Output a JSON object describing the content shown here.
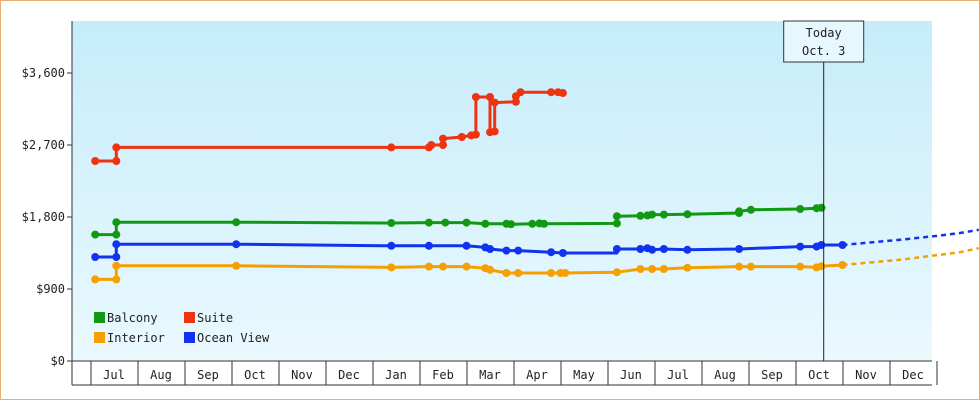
{
  "chart_data": {
    "type": "line",
    "y_ticks": [
      "$0",
      "$900",
      "$1,800",
      "$2,700",
      "$3,600"
    ],
    "ylim": [
      0,
      4250
    ],
    "month_labels": [
      "Jul",
      "Aug",
      "Sep",
      "Oct",
      "Nov",
      "Dec",
      "Jan",
      "Feb",
      "Mar",
      "Apr",
      "May",
      "Jun",
      "Jul",
      "Aug",
      "Sep",
      "Oct",
      "Nov",
      "Dec"
    ],
    "today": {
      "line1": "Today",
      "line2": "Oct. 3",
      "x": 15.1
    },
    "legend": [
      {
        "name": "Balcony",
        "color": "#119911"
      },
      {
        "name": "Suite",
        "color": "#ee3311"
      },
      {
        "name": "Interior",
        "color": "#f5a000"
      },
      {
        "name": "Ocean View",
        "color": "#1133ee"
      }
    ],
    "series": [
      {
        "name": "Balcony",
        "color": "#119911",
        "points": [
          [
            -0.4,
            1580
          ],
          [
            0.05,
            1580
          ],
          [
            0.05,
            1735
          ],
          [
            2.6,
            1735
          ],
          [
            5.9,
            1725
          ],
          [
            6.7,
            1730
          ],
          [
            7.5,
            1730
          ],
          [
            7.9,
            1715
          ],
          [
            8.35,
            1715
          ],
          [
            8.5,
            1710
          ],
          [
            8.9,
            1715
          ],
          [
            9.05,
            1720
          ],
          [
            9.15,
            1715
          ],
          [
            10.7,
            1720
          ],
          [
            10.7,
            1810
          ],
          [
            11.2,
            1815
          ],
          [
            11.35,
            1820
          ],
          [
            11.45,
            1830
          ],
          [
            11.7,
            1830
          ],
          [
            12.2,
            1835
          ],
          [
            13.3,
            1850
          ],
          [
            13.3,
            1870
          ],
          [
            13.55,
            1890
          ],
          [
            14.6,
            1900
          ],
          [
            14.95,
            1910
          ],
          [
            15.05,
            1915
          ]
        ],
        "markers": [
          [
            -0.4,
            1580
          ],
          [
            0.05,
            1580
          ],
          [
            0.05,
            1735
          ],
          [
            2.6,
            1735
          ],
          [
            5.9,
            1725
          ],
          [
            6.7,
            1730
          ],
          [
            7.05,
            1730
          ],
          [
            7.5,
            1730
          ],
          [
            7.9,
            1715
          ],
          [
            8.35,
            1715
          ],
          [
            8.45,
            1710
          ],
          [
            8.9,
            1715
          ],
          [
            9.05,
            1720
          ],
          [
            9.15,
            1715
          ],
          [
            10.7,
            1720
          ],
          [
            10.7,
            1810
          ],
          [
            11.2,
            1815
          ],
          [
            11.35,
            1820
          ],
          [
            11.45,
            1830
          ],
          [
            11.7,
            1830
          ],
          [
            12.2,
            1835
          ],
          [
            13.3,
            1850
          ],
          [
            13.3,
            1870
          ],
          [
            13.55,
            1890
          ],
          [
            14.6,
            1900
          ],
          [
            14.95,
            1910
          ],
          [
            15.05,
            1915
          ]
        ],
        "projected": []
      },
      {
        "name": "Suite",
        "color": "#ee3311",
        "points": [
          [
            -0.4,
            2500
          ],
          [
            0.05,
            2500
          ],
          [
            0.05,
            2670
          ],
          [
            5.9,
            2670
          ],
          [
            6.7,
            2670
          ],
          [
            6.75,
            2700
          ],
          [
            7.0,
            2700
          ],
          [
            7.0,
            2780
          ],
          [
            7.4,
            2800
          ],
          [
            7.6,
            2820
          ],
          [
            7.7,
            2830
          ],
          [
            7.7,
            3300
          ],
          [
            8.0,
            3300
          ],
          [
            8.0,
            2860
          ],
          [
            8.1,
            2870
          ],
          [
            8.1,
            3230
          ],
          [
            8.55,
            3240
          ],
          [
            8.55,
            3310
          ],
          [
            8.65,
            3360
          ],
          [
            9.3,
            3360
          ],
          [
            9.45,
            3360
          ],
          [
            9.55,
            3350
          ]
        ],
        "markers": [
          [
            -0.4,
            2500
          ],
          [
            0.05,
            2500
          ],
          [
            0.05,
            2670
          ],
          [
            5.9,
            2670
          ],
          [
            6.7,
            2670
          ],
          [
            6.75,
            2700
          ],
          [
            7.0,
            2700
          ],
          [
            7.0,
            2780
          ],
          [
            7.4,
            2800
          ],
          [
            7.6,
            2820
          ],
          [
            7.7,
            2830
          ],
          [
            7.7,
            3300
          ],
          [
            8.0,
            3300
          ],
          [
            8.0,
            2860
          ],
          [
            8.1,
            2870
          ],
          [
            8.1,
            3230
          ],
          [
            8.55,
            3240
          ],
          [
            8.55,
            3310
          ],
          [
            8.65,
            3360
          ],
          [
            9.3,
            3360
          ],
          [
            9.45,
            3360
          ],
          [
            9.55,
            3350
          ]
        ],
        "projected": []
      },
      {
        "name": "Interior",
        "color": "#f5a000",
        "points": [
          [
            -0.4,
            1020
          ],
          [
            0.05,
            1020
          ],
          [
            0.05,
            1190
          ],
          [
            2.6,
            1190
          ],
          [
            5.9,
            1170
          ],
          [
            6.7,
            1180
          ],
          [
            7.0,
            1180
          ],
          [
            7.5,
            1180
          ],
          [
            7.9,
            1160
          ],
          [
            8.0,
            1140
          ],
          [
            8.35,
            1100
          ],
          [
            8.6,
            1100
          ],
          [
            9.3,
            1100
          ],
          [
            9.55,
            1100
          ],
          [
            10.7,
            1110
          ],
          [
            11.2,
            1150
          ],
          [
            11.45,
            1150
          ],
          [
            11.7,
            1150
          ],
          [
            12.2,
            1165
          ],
          [
            13.3,
            1180
          ],
          [
            13.55,
            1180
          ],
          [
            14.6,
            1180
          ],
          [
            14.95,
            1170
          ],
          [
            15.05,
            1185
          ],
          [
            15.5,
            1200
          ]
        ],
        "markers": [
          [
            -0.4,
            1020
          ],
          [
            0.05,
            1020
          ],
          [
            0.05,
            1190
          ],
          [
            2.6,
            1190
          ],
          [
            5.9,
            1170
          ],
          [
            6.7,
            1180
          ],
          [
            7.0,
            1180
          ],
          [
            7.5,
            1180
          ],
          [
            7.9,
            1160
          ],
          [
            8.0,
            1140
          ],
          [
            8.35,
            1100
          ],
          [
            8.6,
            1100
          ],
          [
            9.3,
            1100
          ],
          [
            9.5,
            1100
          ],
          [
            9.6,
            1100
          ],
          [
            10.7,
            1110
          ],
          [
            11.2,
            1150
          ],
          [
            11.45,
            1150
          ],
          [
            11.7,
            1150
          ],
          [
            12.2,
            1165
          ],
          [
            13.3,
            1180
          ],
          [
            13.55,
            1180
          ],
          [
            14.6,
            1180
          ],
          [
            14.95,
            1170
          ],
          [
            15.05,
            1185
          ],
          [
            15.5,
            1200
          ]
        ],
        "projected": [
          [
            15.5,
            1200
          ],
          [
            16.8,
            1270
          ],
          [
            17.6,
            1330
          ],
          [
            18.0,
            1360
          ],
          [
            18.4,
            1410
          ]
        ]
      },
      {
        "name": "Ocean View",
        "color": "#1133ee",
        "points": [
          [
            -0.4,
            1300
          ],
          [
            0.05,
            1300
          ],
          [
            0.05,
            1460
          ],
          [
            2.6,
            1460
          ],
          [
            5.9,
            1440
          ],
          [
            6.7,
            1440
          ],
          [
            7.5,
            1440
          ],
          [
            7.9,
            1420
          ],
          [
            8.0,
            1400
          ],
          [
            8.35,
            1380
          ],
          [
            8.6,
            1380
          ],
          [
            9.3,
            1360
          ],
          [
            9.55,
            1350
          ],
          [
            10.7,
            1350
          ],
          [
            10.7,
            1400
          ],
          [
            11.2,
            1400
          ],
          [
            11.35,
            1410
          ],
          [
            11.45,
            1390
          ],
          [
            11.7,
            1400
          ],
          [
            12.2,
            1390
          ],
          [
            13.3,
            1400
          ],
          [
            14.6,
            1430
          ],
          [
            14.95,
            1430
          ],
          [
            15.05,
            1450
          ],
          [
            15.5,
            1450
          ]
        ],
        "markers": [
          [
            -0.4,
            1300
          ],
          [
            0.05,
            1300
          ],
          [
            0.05,
            1460
          ],
          [
            2.6,
            1460
          ],
          [
            5.9,
            1440
          ],
          [
            6.7,
            1440
          ],
          [
            7.5,
            1440
          ],
          [
            7.9,
            1420
          ],
          [
            8.0,
            1400
          ],
          [
            8.35,
            1380
          ],
          [
            8.6,
            1380
          ],
          [
            9.3,
            1360
          ],
          [
            9.55,
            1350
          ],
          [
            10.7,
            1400
          ],
          [
            11.2,
            1400
          ],
          [
            11.35,
            1410
          ],
          [
            11.45,
            1390
          ],
          [
            11.7,
            1400
          ],
          [
            12.2,
            1390
          ],
          [
            13.3,
            1400
          ],
          [
            14.6,
            1430
          ],
          [
            14.95,
            1430
          ],
          [
            15.05,
            1450
          ],
          [
            15.5,
            1450
          ]
        ],
        "projected": [
          [
            15.5,
            1450
          ],
          [
            16.8,
            1520
          ],
          [
            17.6,
            1570
          ],
          [
            18.0,
            1600
          ],
          [
            18.4,
            1640
          ]
        ]
      }
    ]
  }
}
